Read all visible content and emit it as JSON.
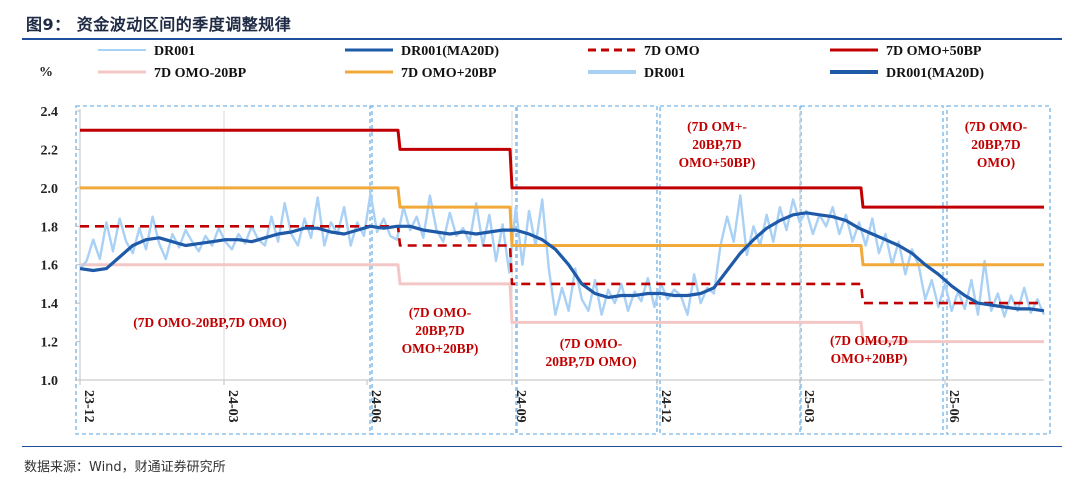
{
  "header": {
    "title": "图9： 资金波动区间的季度调整规律"
  },
  "footer": {
    "source": "数据来源：Wind，财通证券研究所"
  },
  "chart_data": {
    "type": "line",
    "ylabel": "%",
    "ylim": [
      1.0,
      2.4
    ],
    "yticks": [
      "2.4",
      "2.2",
      "2.0",
      "1.8",
      "1.6",
      "1.4",
      "1.2",
      "1.0"
    ],
    "x_ticks": [
      "23-12",
      "24-03",
      "24-06",
      "24-09",
      "24-12",
      "25-03",
      "25-06"
    ],
    "legend": [
      {
        "label": "DR001",
        "color": "#a9d0f5",
        "style": "solid-thin"
      },
      {
        "label": "DR001(MA20D)",
        "color": "#1e5aa8",
        "style": "solid"
      },
      {
        "label": "7D OMO",
        "color": "#c00000",
        "style": "dashed"
      },
      {
        "label": "7D OMO+50BP",
        "color": "#c00000",
        "style": "solid"
      },
      {
        "label": "7D OMO-20BP",
        "color": "#f4c7c7",
        "style": "solid"
      },
      {
        "label": "7D OMO+20BP",
        "color": "#f2a93b",
        "style": "solid"
      },
      {
        "label": "DR001",
        "color": "#a9d0f5",
        "style": "solid-thick"
      },
      {
        "label": "DR001(MA20D)",
        "color": "#1e5aa8",
        "style": "solid-thick"
      }
    ],
    "series": [
      {
        "name": "7D OMO+50BP",
        "color": "#c00000",
        "points": [
          [
            "23-12",
            2.3
          ],
          [
            "24-06-25",
            2.3
          ],
          [
            "24-06-26",
            2.2
          ],
          [
            "24-09-01",
            2.2
          ],
          [
            "24-09-02",
            2.0
          ],
          [
            "25-05-05",
            2.0
          ],
          [
            "25-05-06",
            1.9
          ],
          [
            "25-07-31",
            1.9
          ]
        ]
      },
      {
        "name": "7D OMO+20BP",
        "color": "#f2a93b",
        "points": [
          [
            "23-12",
            2.0
          ],
          [
            "24-06-25",
            2.0
          ],
          [
            "24-06-26",
            1.9
          ],
          [
            "24-09-01",
            1.9
          ],
          [
            "24-09-02",
            1.7
          ],
          [
            "25-05-05",
            1.7
          ],
          [
            "25-05-06",
            1.6
          ],
          [
            "25-07-31",
            1.6
          ]
        ]
      },
      {
        "name": "7D OMO",
        "color": "#c00000",
        "points": [
          [
            "23-12",
            1.8
          ],
          [
            "24-06-25",
            1.8
          ],
          [
            "24-06-26",
            1.7
          ],
          [
            "24-09-01",
            1.7
          ],
          [
            "24-09-02",
            1.5
          ],
          [
            "25-05-05",
            1.5
          ],
          [
            "25-05-06",
            1.4
          ],
          [
            "25-07-31",
            1.4
          ]
        ]
      },
      {
        "name": "7D OMO-20BP",
        "color": "#f4c7c7",
        "points": [
          [
            "23-12",
            1.6
          ],
          [
            "24-06-25",
            1.6
          ],
          [
            "24-06-26",
            1.5
          ],
          [
            "24-09-01",
            1.5
          ],
          [
            "24-09-02",
            1.3
          ],
          [
            "25-05-05",
            1.3
          ],
          [
            "25-05-06",
            1.2
          ],
          [
            "25-07-31",
            1.2
          ]
        ]
      },
      {
        "name": "DR001",
        "color": "#a9d0f5",
        "points": [
          [
            0,
            1.58
          ],
          [
            2,
            1.62
          ],
          [
            4,
            1.73
          ],
          [
            6,
            1.63
          ],
          [
            8,
            1.82
          ],
          [
            10,
            1.67
          ],
          [
            12,
            1.84
          ],
          [
            14,
            1.72
          ],
          [
            16,
            1.66
          ],
          [
            18,
            1.79
          ],
          [
            20,
            1.68
          ],
          [
            22,
            1.85
          ],
          [
            24,
            1.71
          ],
          [
            26,
            1.63
          ],
          [
            28,
            1.76
          ],
          [
            30,
            1.69
          ],
          [
            32,
            1.78
          ],
          [
            34,
            1.72
          ],
          [
            36,
            1.67
          ],
          [
            38,
            1.75
          ],
          [
            40,
            1.7
          ],
          [
            42,
            1.79
          ],
          [
            44,
            1.72
          ],
          [
            46,
            1.68
          ],
          [
            48,
            1.76
          ],
          [
            50,
            1.71
          ],
          [
            52,
            1.8
          ],
          [
            54,
            1.73
          ],
          [
            56,
            1.7
          ],
          [
            58,
            1.85
          ],
          [
            60,
            1.72
          ],
          [
            62,
            1.92
          ],
          [
            64,
            1.76
          ],
          [
            66,
            1.7
          ],
          [
            68,
            1.84
          ],
          [
            70,
            1.74
          ],
          [
            72,
            1.95
          ],
          [
            74,
            1.7
          ],
          [
            76,
            1.82
          ],
          [
            78,
            1.76
          ],
          [
            80,
            1.9
          ],
          [
            82,
            1.7
          ],
          [
            84,
            1.82
          ],
          [
            86,
            1.75
          ],
          [
            88,
            1.97
          ],
          [
            90,
            1.77
          ],
          [
            92,
            1.84
          ],
          [
            94,
            1.75
          ],
          [
            96,
            1.73
          ],
          [
            98,
            1.9
          ],
          [
            100,
            1.78
          ],
          [
            102,
            1.85
          ],
          [
            104,
            1.74
          ],
          [
            106,
            1.96
          ],
          [
            108,
            1.78
          ],
          [
            110,
            1.72
          ],
          [
            112,
            1.87
          ],
          [
            114,
            1.75
          ],
          [
            116,
            1.79
          ],
          [
            118,
            1.72
          ],
          [
            120,
            1.92
          ],
          [
            122,
            1.7
          ],
          [
            124,
            1.86
          ],
          [
            126,
            1.62
          ],
          [
            128,
            1.81
          ],
          [
            130,
            1.56
          ],
          [
            132,
            1.9
          ],
          [
            134,
            1.6
          ],
          [
            136,
            1.88
          ],
          [
            138,
            1.7
          ],
          [
            140,
            1.94
          ],
          [
            142,
            1.58
          ],
          [
            144,
            1.34
          ],
          [
            146,
            1.48
          ],
          [
            148,
            1.36
          ],
          [
            150,
            1.58
          ],
          [
            152,
            1.42
          ],
          [
            154,
            1.36
          ],
          [
            156,
            1.52
          ],
          [
            158,
            1.34
          ],
          [
            160,
            1.47
          ],
          [
            162,
            1.4
          ],
          [
            164,
            1.5
          ],
          [
            166,
            1.36
          ],
          [
            168,
            1.46
          ],
          [
            170,
            1.41
          ],
          [
            172,
            1.53
          ],
          [
            174,
            1.38
          ],
          [
            176,
            1.5
          ],
          [
            178,
            1.42
          ],
          [
            180,
            1.47
          ],
          [
            182,
            1.44
          ],
          [
            184,
            1.34
          ],
          [
            186,
            1.55
          ],
          [
            188,
            1.4
          ],
          [
            190,
            1.48
          ],
          [
            192,
            1.45
          ],
          [
            194,
            1.7
          ],
          [
            196,
            1.85
          ],
          [
            198,
            1.72
          ],
          [
            200,
            1.96
          ],
          [
            202,
            1.65
          ],
          [
            204,
            1.8
          ],
          [
            206,
            1.7
          ],
          [
            208,
            1.86
          ],
          [
            210,
            1.72
          ],
          [
            212,
            1.9
          ],
          [
            214,
            1.78
          ],
          [
            216,
            1.94
          ],
          [
            218,
            1.82
          ],
          [
            220,
            1.88
          ],
          [
            222,
            1.76
          ],
          [
            224,
            1.86
          ],
          [
            226,
            1.8
          ],
          [
            228,
            1.9
          ],
          [
            230,
            1.76
          ],
          [
            232,
            1.86
          ],
          [
            234,
            1.72
          ],
          [
            236,
            1.82
          ],
          [
            238,
            1.7
          ],
          [
            240,
            1.84
          ],
          [
            242,
            1.66
          ],
          [
            244,
            1.76
          ],
          [
            246,
            1.6
          ],
          [
            248,
            1.72
          ],
          [
            250,
            1.55
          ],
          [
            252,
            1.68
          ],
          [
            254,
            1.6
          ],
          [
            256,
            1.42
          ],
          [
            258,
            1.52
          ],
          [
            260,
            1.38
          ],
          [
            262,
            1.5
          ],
          [
            264,
            1.36
          ],
          [
            266,
            1.46
          ],
          [
            268,
            1.37
          ],
          [
            270,
            1.52
          ],
          [
            272,
            1.34
          ],
          [
            274,
            1.62
          ],
          [
            276,
            1.36
          ],
          [
            278,
            1.45
          ],
          [
            280,
            1.33
          ],
          [
            282,
            1.44
          ],
          [
            284,
            1.36
          ],
          [
            286,
            1.48
          ],
          [
            288,
            1.35
          ],
          [
            290,
            1.42
          ],
          [
            292,
            1.34
          ]
        ]
      },
      {
        "name": "DR001(MA20D)",
        "color": "#1e5aa8",
        "points": [
          [
            0,
            1.58
          ],
          [
            4,
            1.57
          ],
          [
            8,
            1.58
          ],
          [
            12,
            1.64
          ],
          [
            16,
            1.7
          ],
          [
            20,
            1.73
          ],
          [
            24,
            1.74
          ],
          [
            28,
            1.72
          ],
          [
            32,
            1.7
          ],
          [
            36,
            1.71
          ],
          [
            40,
            1.72
          ],
          [
            44,
            1.73
          ],
          [
            48,
            1.73
          ],
          [
            52,
            1.72
          ],
          [
            56,
            1.74
          ],
          [
            60,
            1.76
          ],
          [
            64,
            1.77
          ],
          [
            68,
            1.79
          ],
          [
            72,
            1.79
          ],
          [
            76,
            1.77
          ],
          [
            80,
            1.76
          ],
          [
            84,
            1.78
          ],
          [
            88,
            1.8
          ],
          [
            92,
            1.79
          ],
          [
            96,
            1.8
          ],
          [
            100,
            1.8
          ],
          [
            104,
            1.78
          ],
          [
            108,
            1.77
          ],
          [
            112,
            1.76
          ],
          [
            116,
            1.77
          ],
          [
            120,
            1.76
          ],
          [
            124,
            1.77
          ],
          [
            128,
            1.78
          ],
          [
            132,
            1.78
          ],
          [
            136,
            1.76
          ],
          [
            140,
            1.73
          ],
          [
            144,
            1.68
          ],
          [
            148,
            1.6
          ],
          [
            152,
            1.5
          ],
          [
            156,
            1.45
          ],
          [
            160,
            1.43
          ],
          [
            164,
            1.44
          ],
          [
            168,
            1.44
          ],
          [
            172,
            1.45
          ],
          [
            176,
            1.45
          ],
          [
            180,
            1.44
          ],
          [
            184,
            1.44
          ],
          [
            188,
            1.45
          ],
          [
            192,
            1.48
          ],
          [
            196,
            1.57
          ],
          [
            200,
            1.66
          ],
          [
            204,
            1.73
          ],
          [
            208,
            1.79
          ],
          [
            212,
            1.83
          ],
          [
            216,
            1.86
          ],
          [
            220,
            1.87
          ],
          [
            224,
            1.86
          ],
          [
            228,
            1.85
          ],
          [
            232,
            1.83
          ],
          [
            236,
            1.79
          ],
          [
            240,
            1.76
          ],
          [
            244,
            1.73
          ],
          [
            248,
            1.7
          ],
          [
            252,
            1.66
          ],
          [
            256,
            1.6
          ],
          [
            260,
            1.55
          ],
          [
            264,
            1.49
          ],
          [
            268,
            1.44
          ],
          [
            272,
            1.4
          ],
          [
            276,
            1.39
          ],
          [
            280,
            1.38
          ],
          [
            284,
            1.37
          ],
          [
            288,
            1.37
          ],
          [
            292,
            1.36
          ]
        ]
      }
    ],
    "annotations": [
      {
        "text": "(7D OMO-20BP,7D OMO)"
      },
      {
        "lines": [
          "(7D OMO-",
          "20BP,7D",
          "OMO+20BP)"
        ]
      },
      {
        "lines": [
          "(7D OMO-",
          "20BP,7D OMO)"
        ]
      },
      {
        "lines": [
          "(7D OM+-",
          "20BP,7D",
          "OMO+50BP)"
        ]
      },
      {
        "lines": [
          "(7D OMO,7D",
          "OMO+20BP)"
        ]
      },
      {
        "lines": [
          "(7D OMO-",
          "20BP,7D",
          "OMO)"
        ]
      }
    ]
  }
}
